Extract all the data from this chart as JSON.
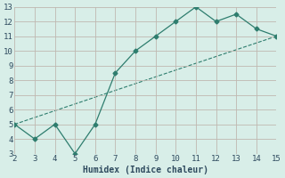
{
  "x": [
    2,
    3,
    4,
    5,
    6,
    7,
    8,
    9,
    10,
    11,
    12,
    13,
    14,
    15
  ],
  "y": [
    5,
    4,
    5,
    3,
    5,
    8.5,
    10,
    11,
    12,
    13,
    12,
    12.5,
    11.5,
    11
  ],
  "trend_x": [
    2,
    15
  ],
  "trend_y": [
    5,
    11
  ],
  "xlabel": "Humidex (Indice chaleur)",
  "xlim": [
    2,
    15
  ],
  "ylim": [
    3,
    13
  ],
  "xticks": [
    2,
    3,
    4,
    5,
    6,
    7,
    8,
    9,
    10,
    11,
    12,
    13,
    14,
    15
  ],
  "yticks": [
    3,
    4,
    5,
    6,
    7,
    8,
    9,
    10,
    11,
    12,
    13
  ],
  "line_color": "#2e7d6e",
  "marker": "D",
  "marker_size": 2.5,
  "bg_color": "#d8eee8",
  "grid_color": "#c0b8b0",
  "font_color": "#2e4a5e",
  "axis_fontsize": 7,
  "tick_fontsize": 6.5
}
